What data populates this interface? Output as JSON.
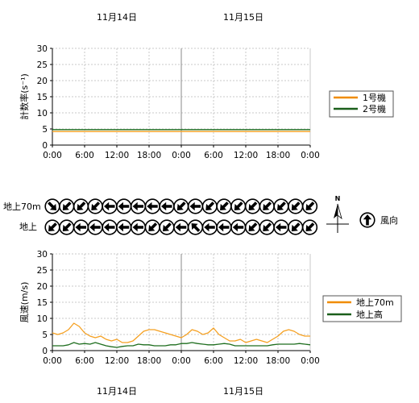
{
  "date_labels": [
    "11月14日",
    "11月15日"
  ],
  "colors": {
    "orange": "#f5a020",
    "green": "#1f6e1f",
    "legend_orange": "#f08c00",
    "legend_green": "#1a5e1a",
    "grid": "#c8c8c8",
    "midline": "#888888"
  },
  "chart_data": [
    {
      "type": "line",
      "ylabel": "計数率(s⁻¹)",
      "ylim": [
        0,
        30
      ],
      "yticks": [
        0,
        5,
        10,
        15,
        20,
        25,
        30
      ],
      "xlim_hours": [
        0,
        48
      ],
      "xtick_labels": [
        "0:00",
        "6:00",
        "12:00",
        "18:00",
        "0:00",
        "6:00",
        "12:00",
        "18:00",
        "0:00"
      ],
      "grid": true,
      "legend_position": "right",
      "series": [
        {
          "name": "1号機",
          "color": "#f5a020",
          "values": [
            4.2,
            4.2,
            4.2,
            4.2,
            4.2,
            4.2,
            4.2,
            4.2,
            4.2,
            4.2,
            4.2,
            4.2,
            4.2,
            4.2,
            4.2,
            4.2,
            4.2,
            4.2,
            4.2,
            4.2,
            4.2,
            4.2,
            4.2,
            4.2,
            4.2,
            4.2,
            4.2,
            4.2,
            4.2,
            4.2,
            4.2,
            4.2,
            4.2,
            4.2,
            4.2,
            4.2,
            4.2,
            4.2,
            4.2,
            4.2,
            4.2,
            4.2,
            4.2,
            4.2,
            4.2,
            4.2,
            4.2,
            4.2,
            4.2
          ]
        },
        {
          "name": "2号機",
          "color": "#1f6e1f",
          "values": [
            4.8,
            4.8,
            4.8,
            4.8,
            4.8,
            4.8,
            4.8,
            4.8,
            4.8,
            4.8,
            4.8,
            4.8,
            4.8,
            4.8,
            4.8,
            4.8,
            4.8,
            4.8,
            4.8,
            4.8,
            4.8,
            4.8,
            4.8,
            4.8,
            4.8,
            4.8,
            4.8,
            4.8,
            4.8,
            4.8,
            4.8,
            4.8,
            4.8,
            4.8,
            4.8,
            4.8,
            4.8,
            4.8,
            4.8,
            4.8,
            4.8,
            4.8,
            4.8,
            4.8,
            4.8,
            4.8,
            4.8,
            4.8,
            4.8
          ]
        }
      ]
    },
    {
      "type": "line",
      "ylabel": "風速(m/s)",
      "ylim": [
        0,
        30
      ],
      "yticks": [
        0,
        5,
        10,
        15,
        20,
        25,
        30
      ],
      "xlim_hours": [
        0,
        48
      ],
      "xtick_labels": [
        "0:00",
        "6:00",
        "12:00",
        "18:00",
        "0:00",
        "6:00",
        "12:00",
        "18:00",
        "0:00"
      ],
      "grid": true,
      "legend_position": "right",
      "series": [
        {
          "name": "地上70m",
          "color": "#f5a020",
          "values": [
            5.5,
            5.0,
            5.5,
            6.5,
            8.5,
            7.5,
            5.5,
            4.5,
            4.0,
            4.5,
            3.5,
            3.0,
            3.5,
            2.5,
            2.5,
            3.0,
            4.5,
            6.0,
            6.5,
            6.5,
            6.0,
            5.5,
            5.0,
            4.5,
            4.0,
            5.0,
            6.5,
            6.0,
            5.0,
            5.5,
            7.0,
            5.0,
            4.0,
            3.0,
            3.0,
            3.5,
            2.5,
            3.0,
            3.5,
            3.0,
            2.5,
            3.5,
            4.5,
            6.0,
            6.5,
            6.0,
            5.0,
            4.5,
            4.5
          ]
        },
        {
          "name": "地上高",
          "color": "#1f6e1f",
          "values": [
            1.5,
            1.5,
            1.5,
            1.8,
            2.5,
            2.0,
            2.2,
            2.0,
            2.5,
            2.0,
            1.5,
            1.2,
            1.0,
            1.3,
            1.5,
            1.5,
            2.0,
            1.8,
            1.8,
            1.5,
            1.5,
            1.5,
            1.8,
            1.8,
            2.2,
            2.2,
            2.5,
            2.2,
            2.0,
            1.8,
            1.8,
            2.0,
            2.2,
            2.0,
            1.5,
            1.5,
            1.5,
            1.5,
            1.5,
            1.5,
            1.5,
            1.8,
            2.0,
            2.0,
            2.0,
            2.0,
            2.2,
            2.0,
            1.8
          ]
        }
      ]
    }
  ],
  "wind_direction": {
    "rows": [
      {
        "label": "地上70m",
        "directions_deg": [
          315,
          45,
          45,
          45,
          90,
          90,
          90,
          90,
          90,
          45,
          90,
          45,
          45,
          45,
          45,
          45,
          45,
          45,
          45
        ]
      },
      {
        "label": "地上",
        "directions_deg": [
          45,
          45,
          90,
          90,
          90,
          90,
          90,
          45,
          45,
          90,
          135,
          90,
          90,
          90,
          45,
          45,
          90,
          45,
          45
        ]
      }
    ],
    "compass_label": "N",
    "legend_label": "風向"
  }
}
